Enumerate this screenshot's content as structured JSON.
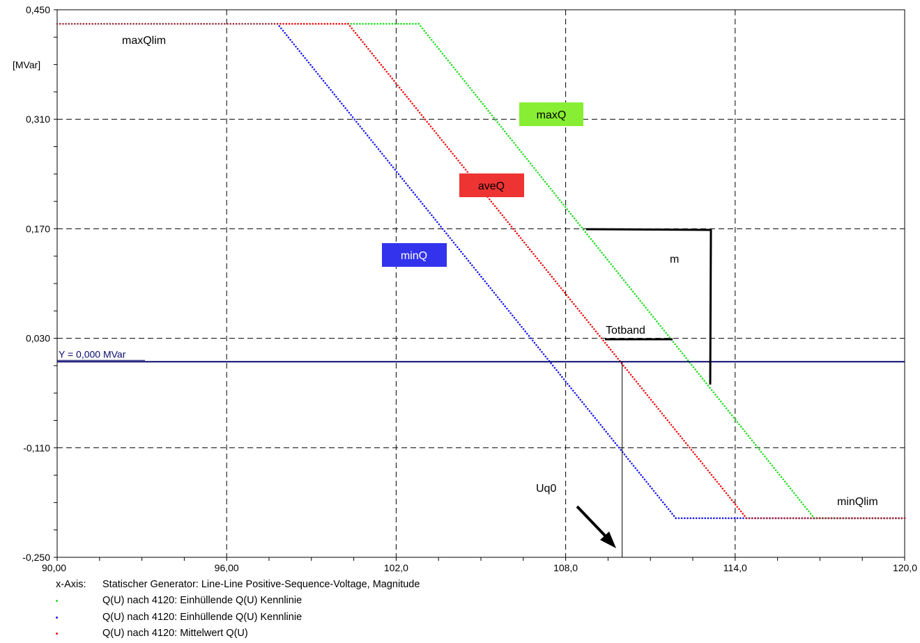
{
  "chart_data": {
    "type": "line",
    "xlim": [
      90,
      120
    ],
    "ylim": [
      -0.25,
      0.45
    ],
    "x_ticks": [
      90,
      96,
      102,
      108,
      114,
      120
    ],
    "x_tick_labels": [
      "90,00",
      "96,00",
      "102,0",
      "108,0",
      "114,0",
      "120,0"
    ],
    "y_ticks": [
      0.45,
      0.31,
      0.17,
      0.03,
      -0.11,
      -0.25
    ],
    "y_tick_labels": [
      "0,450",
      "0,310",
      "0,170",
      "0,030",
      "-0,110",
      "-0,250"
    ],
    "ylabel": "[MVar]",
    "grid": true,
    "series": [
      {
        "name": "Q(U) nach 4120: Einhüllende Q(U) Kennlinie",
        "color": "#22dd22",
        "x": [
          100.3,
          102.8,
          116.8,
          120
        ],
        "y": [
          0.432,
          0.432,
          -0.2,
          -0.2
        ]
      },
      {
        "name": "Q(U) nach 4120: Einhüllende Q(U) Kennlinie",
        "color": "#1a1aee",
        "x": [
          97.8,
          111.9,
          120
        ],
        "y": [
          0.432,
          -0.2,
          -0.2
        ]
      },
      {
        "name": "Q(U) nach 4120: Mittelwert Q(U)",
        "color": "#ee1111",
        "x": [
          97.8,
          100.3,
          114.4,
          120
        ],
        "y": [
          0.432,
          0.432,
          -0.2,
          -0.2
        ]
      }
    ],
    "limit_segments": [
      {
        "color": "#993344",
        "x": [
          90,
          97.8
        ],
        "y": [
          0.432,
          0.432
        ]
      },
      {
        "color": "#993344",
        "x": [
          114.4,
          120
        ],
        "y": [
          -0.2,
          -0.2
        ]
      }
    ],
    "hline": {
      "y": 0.0,
      "label": "Y =  0,000 MVar",
      "color": "#0a0a6e"
    },
    "uq0_x": 110.0,
    "annotations": {
      "maxQlim": "maxQlim",
      "minQlim": "minQlim",
      "maxQ": "maxQ",
      "aveQ": "aveQ",
      "minQ": "minQ",
      "m": "m",
      "totband": "Totband",
      "uq0": "Uq0"
    },
    "box_colors": {
      "maxQ": "#88ee33",
      "aveQ": "#ee3333",
      "minQ": "#3333ee"
    }
  },
  "legend": {
    "xaxis_key": "x-Axis:",
    "xaxis_text": "Statischer Generator: Line-Line Positive-Sequence-Voltage, Magnitude",
    "items": [
      {
        "text": "Q(U) nach 4120: Einhüllende Q(U) Kennlinie",
        "color": "#22dd22"
      },
      {
        "text": "Q(U) nach 4120: Einhüllende Q(U) Kennlinie",
        "color": "#1a1aee"
      },
      {
        "text": "Q(U) nach 4120: Mittelwert Q(U)",
        "color": "#ee1111"
      }
    ]
  }
}
